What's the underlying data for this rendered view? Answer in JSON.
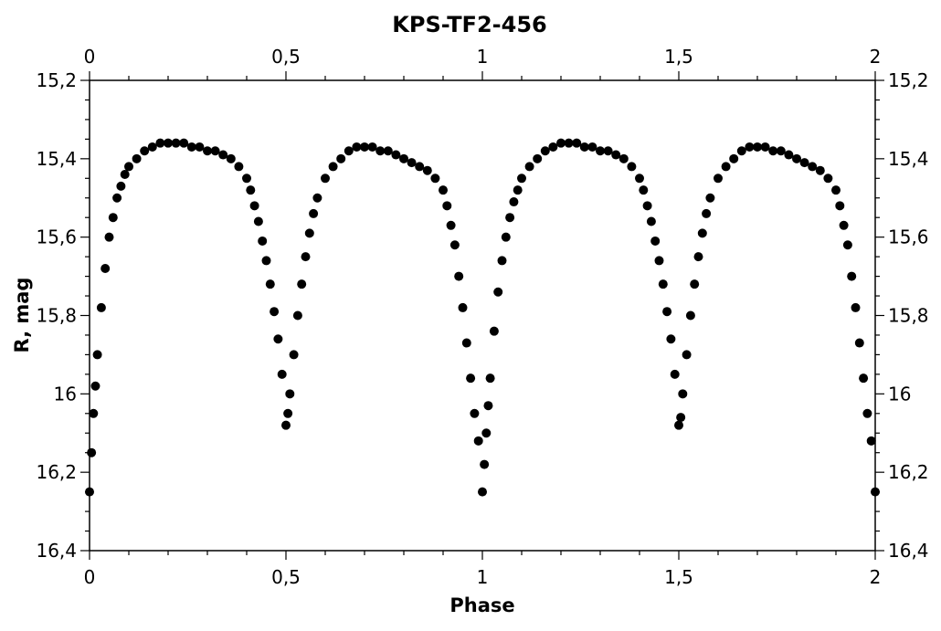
{
  "chart_data": {
    "type": "scatter",
    "title": "KPS-TF2-456",
    "xlabel": "Phase",
    "ylabel": "R, mag",
    "xlim": [
      0,
      2
    ],
    "ylim": [
      16.4,
      15.2
    ],
    "y_inverted": true,
    "grid": false,
    "legend": "none",
    "marker_color": "#000000",
    "x_ticks": [
      {
        "value": 0,
        "label": "0"
      },
      {
        "value": 0.5,
        "label": "0,5"
      },
      {
        "value": 1,
        "label": "1"
      },
      {
        "value": 1.5,
        "label": "1,5"
      },
      {
        "value": 2,
        "label": "2"
      }
    ],
    "y_ticks": [
      {
        "value": 15.2,
        "label": "15,2"
      },
      {
        "value": 15.4,
        "label": "15,4"
      },
      {
        "value": 15.6,
        "label": "15,6"
      },
      {
        "value": 15.8,
        "label": "15,8"
      },
      {
        "value": 16.0,
        "label": "16"
      },
      {
        "value": 16.2,
        "label": "16,2"
      },
      {
        "value": 16.4,
        "label": "16,4"
      }
    ],
    "series": [
      {
        "x": [
          0.0,
          0.005,
          0.01,
          0.015,
          0.02,
          0.03,
          0.04,
          0.05,
          0.06,
          0.07,
          0.08,
          0.09,
          0.1,
          0.12,
          0.14,
          0.16,
          0.18,
          0.2,
          0.22,
          0.24,
          0.26,
          0.28,
          0.3,
          0.32,
          0.34,
          0.36,
          0.38,
          0.4,
          0.41,
          0.42,
          0.43,
          0.44,
          0.45,
          0.46,
          0.47,
          0.48,
          0.49,
          0.5,
          0.505,
          0.51,
          0.52,
          0.53,
          0.54,
          0.55,
          0.56,
          0.57,
          0.58,
          0.6,
          0.62,
          0.64,
          0.66,
          0.68,
          0.7,
          0.72,
          0.74,
          0.76,
          0.78,
          0.8,
          0.82,
          0.84,
          0.86,
          0.88,
          0.9,
          0.91,
          0.92,
          0.93,
          0.94,
          0.95,
          0.96,
          0.97,
          0.98,
          0.99,
          1.0,
          1.005,
          1.01,
          1.015,
          1.02,
          1.03,
          1.04,
          1.05,
          1.06,
          1.07,
          1.08,
          1.09,
          1.1,
          1.12,
          1.14,
          1.16,
          1.18,
          1.2,
          1.22,
          1.24,
          1.26,
          1.28,
          1.3,
          1.32,
          1.34,
          1.36,
          1.38,
          1.4,
          1.41,
          1.42,
          1.43,
          1.44,
          1.45,
          1.46,
          1.47,
          1.48,
          1.49,
          1.5,
          1.505,
          1.51,
          1.52,
          1.53,
          1.54,
          1.55,
          1.56,
          1.57,
          1.58,
          1.6,
          1.62,
          1.64,
          1.66,
          1.68,
          1.7,
          1.72,
          1.74,
          1.76,
          1.78,
          1.8,
          1.82,
          1.84,
          1.86,
          1.88,
          1.9,
          1.91,
          1.92,
          1.93,
          1.94,
          1.95,
          1.96,
          1.97,
          1.98,
          1.99,
          2.0
        ],
        "y": [
          16.25,
          16.15,
          16.05,
          15.98,
          15.9,
          15.78,
          15.68,
          15.6,
          15.55,
          15.5,
          15.47,
          15.44,
          15.42,
          15.4,
          15.38,
          15.37,
          15.36,
          15.36,
          15.36,
          15.36,
          15.37,
          15.37,
          15.38,
          15.38,
          15.39,
          15.4,
          15.42,
          15.45,
          15.48,
          15.52,
          15.56,
          15.61,
          15.66,
          15.72,
          15.79,
          15.86,
          15.95,
          16.08,
          16.05,
          16.0,
          15.9,
          15.8,
          15.72,
          15.65,
          15.59,
          15.54,
          15.5,
          15.45,
          15.42,
          15.4,
          15.38,
          15.37,
          15.37,
          15.37,
          15.38,
          15.38,
          15.39,
          15.4,
          15.41,
          15.42,
          15.43,
          15.45,
          15.48,
          15.52,
          15.57,
          15.62,
          15.7,
          15.78,
          15.87,
          15.96,
          16.05,
          16.12,
          16.25,
          16.18,
          16.1,
          16.03,
          15.96,
          15.84,
          15.74,
          15.66,
          15.6,
          15.55,
          15.51,
          15.48,
          15.45,
          15.42,
          15.4,
          15.38,
          15.37,
          15.36,
          15.36,
          15.36,
          15.37,
          15.37,
          15.38,
          15.38,
          15.39,
          15.4,
          15.42,
          15.45,
          15.48,
          15.52,
          15.56,
          15.61,
          15.66,
          15.72,
          15.79,
          15.86,
          15.95,
          16.08,
          16.06,
          16.0,
          15.9,
          15.8,
          15.72,
          15.65,
          15.59,
          15.54,
          15.5,
          15.45,
          15.42,
          15.4,
          15.38,
          15.37,
          15.37,
          15.37,
          15.38,
          15.38,
          15.39,
          15.4,
          15.41,
          15.42,
          15.43,
          15.45,
          15.48,
          15.52,
          15.57,
          15.62,
          15.7,
          15.78,
          15.87,
          15.96,
          16.05,
          16.12,
          16.25
        ]
      }
    ]
  }
}
